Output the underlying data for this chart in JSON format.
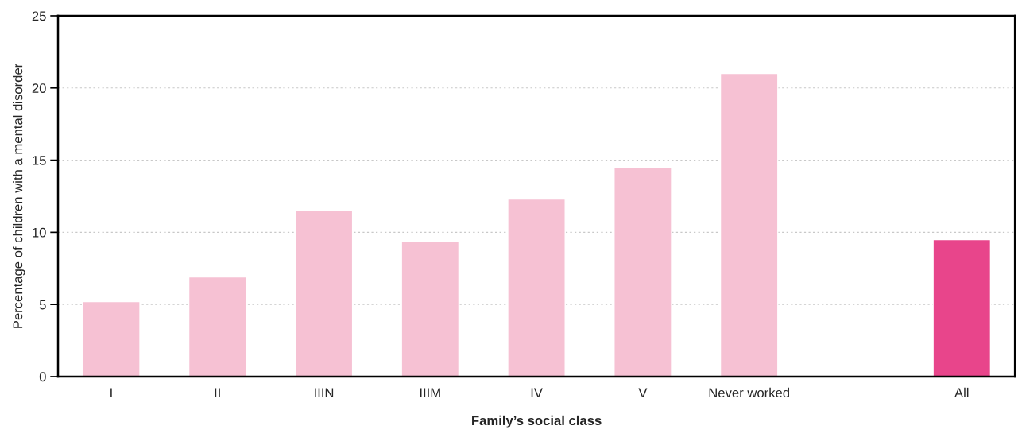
{
  "chart_data": {
    "type": "bar",
    "xlabel": "Family’s social class",
    "ylabel": "Percentage of children with a mental disorder",
    "categories": [
      "I",
      "II",
      "IIIN",
      "IIIM",
      "IV",
      "V",
      "Never worked",
      null,
      "All"
    ],
    "values": [
      5.2,
      6.9,
      11.5,
      9.4,
      12.3,
      14.5,
      21.0,
      null,
      9.5
    ],
    "colors": [
      "#f6c1d3",
      "#f6c1d3",
      "#f6c1d3",
      "#f6c1d3",
      "#f6c1d3",
      "#f6c1d3",
      "#f6c1d3",
      "#f6c1d3",
      "#e8458b"
    ],
    "ylim": [
      0,
      25
    ],
    "yticks": [
      0,
      5,
      10,
      15,
      20,
      25
    ],
    "grid": "y"
  }
}
